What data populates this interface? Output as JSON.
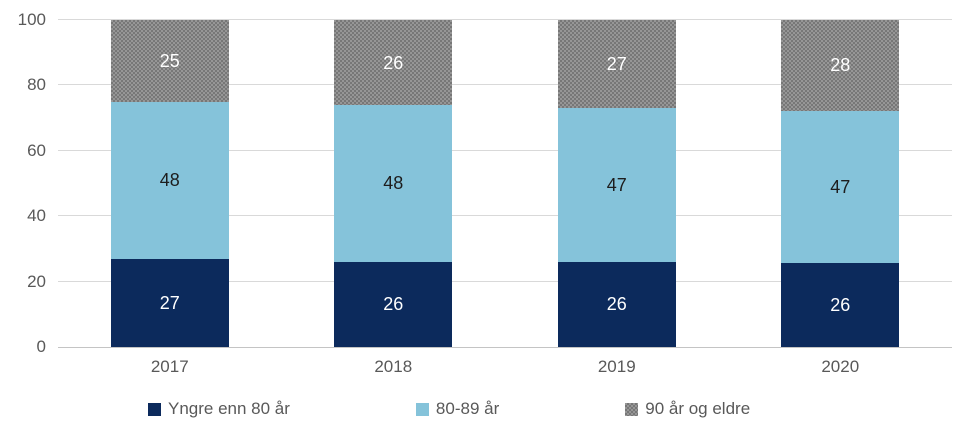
{
  "chart_data": {
    "type": "bar",
    "variant": "stacked-column",
    "title": "",
    "categories": [
      "2017",
      "2018",
      "2019",
      "2020"
    ],
    "series": [
      {
        "name": "Yngre enn 80 år",
        "values": [
          27,
          26,
          26,
          26
        ],
        "color": "#0c2a5c",
        "label_color": "#ffffff",
        "pattern": "solid"
      },
      {
        "name": "80-89 år",
        "values": [
          48,
          48,
          47,
          47
        ],
        "color": "#85c3da",
        "label_color": "#1d1d1d",
        "pattern": "solid"
      },
      {
        "name": "90 år og eldre",
        "values": [
          25,
          26,
          27,
          28
        ],
        "color": "#7c7c7c",
        "label_color": "#ffffff",
        "pattern": "dotted"
      }
    ],
    "y_ticks": [
      0,
      20,
      40,
      60,
      80,
      100
    ],
    "ylim": [
      0,
      100
    ],
    "grid": "horizontal",
    "legend_position": "bottom",
    "axis_text_color": "#595959",
    "gridline_color": "#d9d9d9",
    "axis_line_color": "#c4c4c4",
    "background": "#ffffff"
  }
}
